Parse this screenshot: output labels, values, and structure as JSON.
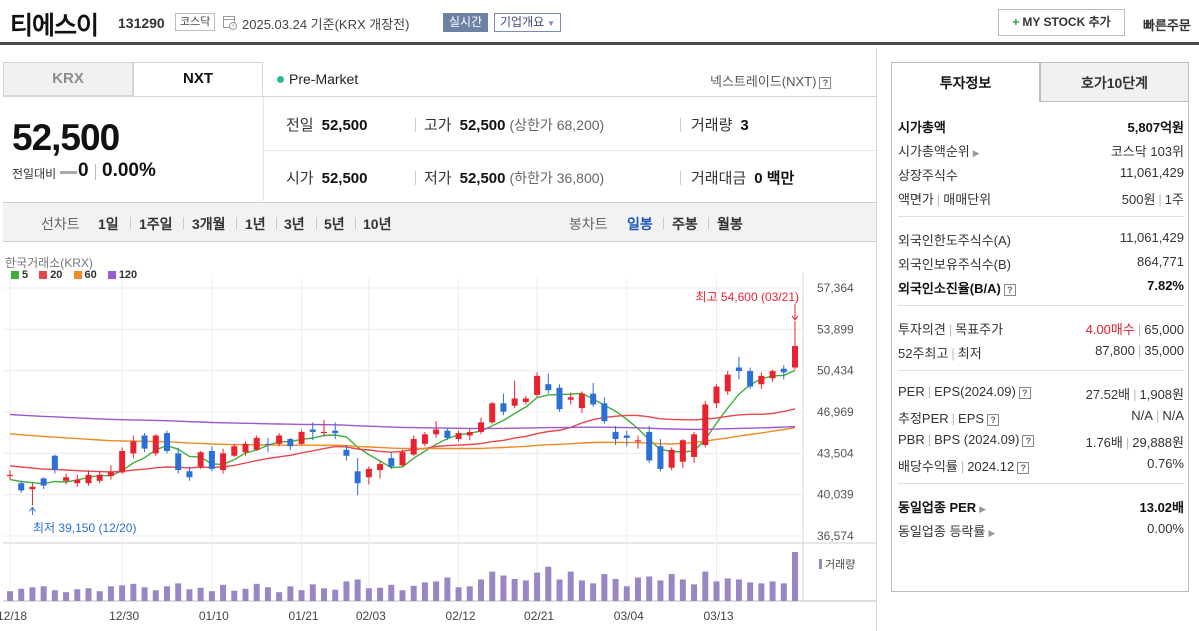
{
  "header": {
    "stock_name": "티에스이",
    "stock_code": "131290",
    "market": "코스닥",
    "date_text": "2025.03.24  기준(KRX 개장전)",
    "realtime": "실시간",
    "company_overview": "기업개요",
    "mystock": "MY STOCK 추가",
    "quick_order": "빠른주문"
  },
  "tabs": {
    "krx": "KRX",
    "nxt": "NXT"
  },
  "premarket": "Pre-Market",
  "nextrade": "넥스트레이드(NXT)",
  "price": {
    "current": "52,500",
    "diff_label": "전일대비",
    "diff": "0",
    "pct": "0.00%",
    "prev_label": "전일",
    "prev": "52,500",
    "high_label": "고가",
    "high": "52,500",
    "upper_limit": "(상한가 68,200)",
    "volume_label": "거래량",
    "volume": "3",
    "open_label": "시가",
    "open": "52,500",
    "low_label": "저가",
    "low": "52,500",
    "lower_limit": "(하한가 36,800)",
    "amount_label": "거래대금",
    "amount": "0 백만"
  },
  "period": {
    "line_label": "선차트",
    "line_items": [
      "1일",
      "1주일",
      "3개월",
      "1년",
      "3년",
      "5년",
      "10년"
    ],
    "candle_label": "봉차트",
    "candle_items": [
      "일봉",
      "주봉",
      "월봉"
    ],
    "active_candle": "일봉"
  },
  "chart_data": {
    "type": "candlestick",
    "source": "한국거래소(KRX)",
    "legend": [
      {
        "name": "5",
        "color": "#3fae3a"
      },
      {
        "name": "20",
        "color": "#e8454d"
      },
      {
        "name": "60",
        "color": "#f08a24"
      },
      {
        "name": "120",
        "color": "#9b59d0"
      }
    ],
    "y_ticks": [
      "57,364",
      "53,899",
      "50,434",
      "46,969",
      "43,504",
      "40,039",
      "36,574"
    ],
    "ylim": [
      36574,
      57364
    ],
    "x_ticks": [
      "12/18",
      "12/30",
      "01/10",
      "01/21",
      "02/03",
      "02/12",
      "02/21",
      "03/04",
      "03/13"
    ],
    "high_annotation": "최고 54,600 (03/21)",
    "low_annotation": "최저 39,150 (12/20)",
    "volume_label": "거래량",
    "up_color": "#e8232f",
    "down_color": "#2c6fd8",
    "candles": [
      [
        41600,
        42100,
        41300,
        41700
      ],
      [
        41000,
        41200,
        40200,
        40400
      ],
      [
        40500,
        41000,
        39150,
        40700
      ],
      [
        41400,
        41500,
        40500,
        40800
      ],
      [
        43300,
        43400,
        41800,
        42100
      ],
      [
        41200,
        41800,
        40900,
        41500
      ],
      [
        41000,
        41700,
        40700,
        41300
      ],
      [
        41000,
        42100,
        40800,
        41700
      ],
      [
        41200,
        42000,
        41000,
        41700
      ],
      [
        41600,
        42500,
        41300,
        41900
      ],
      [
        41900,
        44000,
        41800,
        43700
      ],
      [
        43500,
        45000,
        43100,
        44500
      ],
      [
        45000,
        45200,
        43600,
        43900
      ],
      [
        43500,
        45100,
        43300,
        45000
      ],
      [
        45200,
        45400,
        43500,
        43700
      ],
      [
        43500,
        44000,
        41800,
        42100
      ],
      [
        42000,
        42400,
        41200,
        41500
      ],
      [
        42400,
        43700,
        42200,
        43600
      ],
      [
        43700,
        44100,
        42000,
        42200
      ],
      [
        42100,
        43900,
        41800,
        43500
      ],
      [
        43300,
        44300,
        43200,
        44100
      ],
      [
        43600,
        44500,
        43300,
        44300
      ],
      [
        43800,
        45000,
        43700,
        44800
      ],
      [
        44300,
        44800,
        43600,
        44200
      ],
      [
        44300,
        45200,
        44100,
        45000
      ],
      [
        44700,
        44800,
        43800,
        44100
      ],
      [
        44300,
        45500,
        44200,
        45300
      ],
      [
        45500,
        46100,
        44600,
        45300
      ],
      [
        45200,
        46300,
        44900,
        45300
      ],
      [
        45400,
        46100,
        44700,
        45200
      ],
      [
        43800,
        44200,
        42900,
        43300
      ],
      [
        42000,
        43100,
        40000,
        41000
      ],
      [
        41500,
        42400,
        40900,
        42200
      ],
      [
        42100,
        42900,
        41400,
        42600
      ],
      [
        43100,
        43600,
        42200,
        42400
      ],
      [
        42500,
        43800,
        42400,
        43600
      ],
      [
        43400,
        45000,
        43300,
        44700
      ],
      [
        44300,
        45300,
        44100,
        45100
      ],
      [
        45100,
        46200,
        44800,
        45500
      ],
      [
        45400,
        45600,
        44600,
        44800
      ],
      [
        44700,
        45400,
        44500,
        45200
      ],
      [
        45000,
        45600,
        44600,
        45300
      ],
      [
        45300,
        46500,
        45100,
        46100
      ],
      [
        46100,
        47800,
        46000,
        47700
      ],
      [
        47700,
        48500,
        46700,
        47000
      ],
      [
        47500,
        49600,
        47300,
        48100
      ],
      [
        47800,
        48300,
        47600,
        48100
      ],
      [
        48400,
        50300,
        48200,
        50000
      ],
      [
        49300,
        50200,
        48500,
        48800
      ],
      [
        49000,
        49300,
        47000,
        47200
      ],
      [
        48000,
        48600,
        47600,
        48200
      ],
      [
        47300,
        48700,
        46900,
        48500
      ],
      [
        48500,
        49400,
        47400,
        47600
      ],
      [
        47700,
        48200,
        46000,
        46200
      ],
      [
        45300,
        45800,
        44200,
        44700
      ],
      [
        45000,
        45400,
        44100,
        44800
      ],
      [
        44500,
        45000,
        43900,
        44600
      ],
      [
        45300,
        45800,
        42700,
        42900
      ],
      [
        44100,
        44700,
        42000,
        42200
      ],
      [
        42300,
        44000,
        42100,
        43800
      ],
      [
        42800,
        44700,
        42300,
        44600
      ],
      [
        43200,
        45300,
        42700,
        45100
      ],
      [
        44200,
        47900,
        44000,
        47600
      ],
      [
        47700,
        49300,
        47300,
        49100
      ],
      [
        48700,
        50400,
        48400,
        50100
      ],
      [
        50700,
        51600,
        49700,
        50400
      ],
      [
        50400,
        50700,
        48900,
        49100
      ],
      [
        49300,
        50300,
        48900,
        50000
      ],
      [
        49800,
        50500,
        49500,
        50400
      ],
      [
        50600,
        50900,
        49700,
        50300
      ],
      [
        50700,
        54600,
        50500,
        52500
      ]
    ],
    "volumes": [
      20,
      25,
      28,
      30,
      22,
      18,
      24,
      26,
      20,
      30,
      32,
      35,
      28,
      22,
      30,
      36,
      24,
      27,
      20,
      33,
      21,
      25,
      35,
      28,
      18,
      30,
      22,
      34,
      26,
      23,
      40,
      44,
      26,
      27,
      33,
      22,
      31,
      38,
      40,
      48,
      28,
      30,
      44,
      60,
      52,
      45,
      42,
      58,
      70,
      44,
      60,
      42,
      36,
      55,
      45,
      30,
      48,
      50,
      42,
      55,
      44,
      34,
      60,
      40,
      46,
      44,
      38,
      36,
      40,
      36,
      100
    ]
  },
  "right": {
    "tab_info": "투자정보",
    "tab_hoga": "호가10단계",
    "rows": [
      {
        "k": "시가총액",
        "v": "5,807억원"
      },
      {
        "k": "시가총액순위",
        "v": "코스닥 103위"
      },
      {
        "k": "상장주식수",
        "v": "11,061,429"
      },
      {
        "k1": "액면가",
        "k2": "매매단위",
        "v1": "500원",
        "v2": "1주"
      },
      {
        "k": "외국인한도주식수(A)",
        "v": "11,061,429"
      },
      {
        "k": "외국인보유주식수(B)",
        "v": "864,771"
      },
      {
        "k": "외국인소진율(B/A)",
        "v": "7.82%"
      },
      {
        "k1": "투자의견",
        "k2": "목표주가",
        "v1": "4.00매수",
        "v2": "65,000"
      },
      {
        "k1": "52주최고",
        "k2": "최저",
        "v1": "87,800",
        "v2": "35,000"
      },
      {
        "k1": "PER",
        "k2": "EPS(2024.09)",
        "v1": "27.52배",
        "v2": "1,908원"
      },
      {
        "k1": "추정PER",
        "k2": "EPS",
        "v1": "N/A",
        "v2": "N/A"
      },
      {
        "k1": "PBR",
        "k2": "BPS (2024.09)",
        "v1": "1.76배",
        "v2": "29,888원"
      },
      {
        "k1": "배당수익률",
        "k2": "2024.12",
        "v": "0.76%"
      },
      {
        "k": "동일업종 PER",
        "v": "13.02배"
      },
      {
        "k": "동일업종 등락률",
        "v": "0.00%"
      }
    ]
  }
}
